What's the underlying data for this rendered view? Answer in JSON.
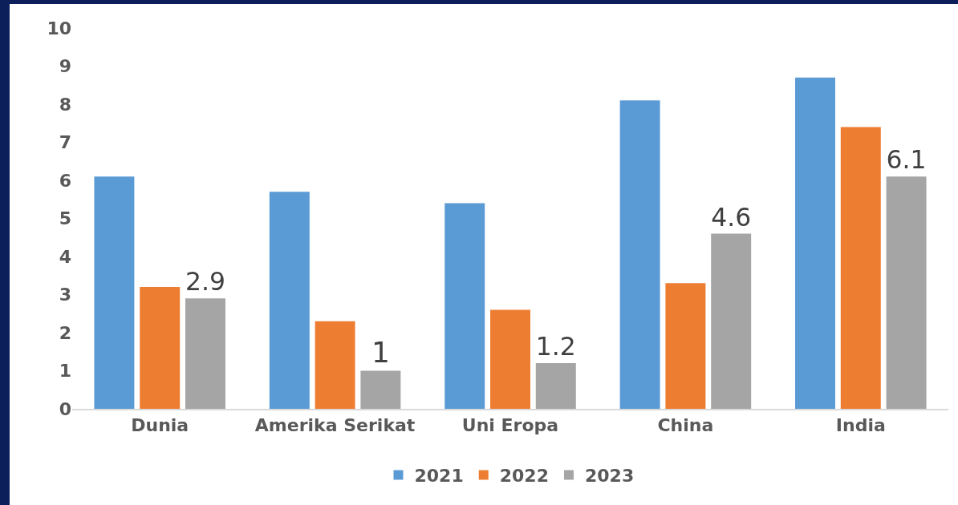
{
  "chart_data": {
    "type": "bar",
    "categories": [
      "Dunia",
      "Amerika Serikat",
      "Uni Eropa",
      "China",
      "India"
    ],
    "series": [
      {
        "name": "2021",
        "color": "#5b9bd5",
        "values": [
          6.1,
          5.7,
          5.4,
          8.1,
          8.7
        ]
      },
      {
        "name": "2022",
        "color": "#ed7d31",
        "values": [
          3.2,
          2.3,
          2.6,
          3.3,
          7.4
        ]
      },
      {
        "name": "2023",
        "color": "#a5a5a5",
        "values": [
          2.9,
          1,
          1.2,
          4.6,
          6.1
        ],
        "value_labels": [
          "2.9",
          "1",
          "1.2",
          "4.6",
          "6.1"
        ]
      }
    ],
    "ylim": [
      0,
      10
    ],
    "yticks": [
      0,
      1,
      2,
      3,
      4,
      5,
      6,
      7,
      8,
      9,
      10
    ],
    "grid": false,
    "legend": "bottom"
  }
}
